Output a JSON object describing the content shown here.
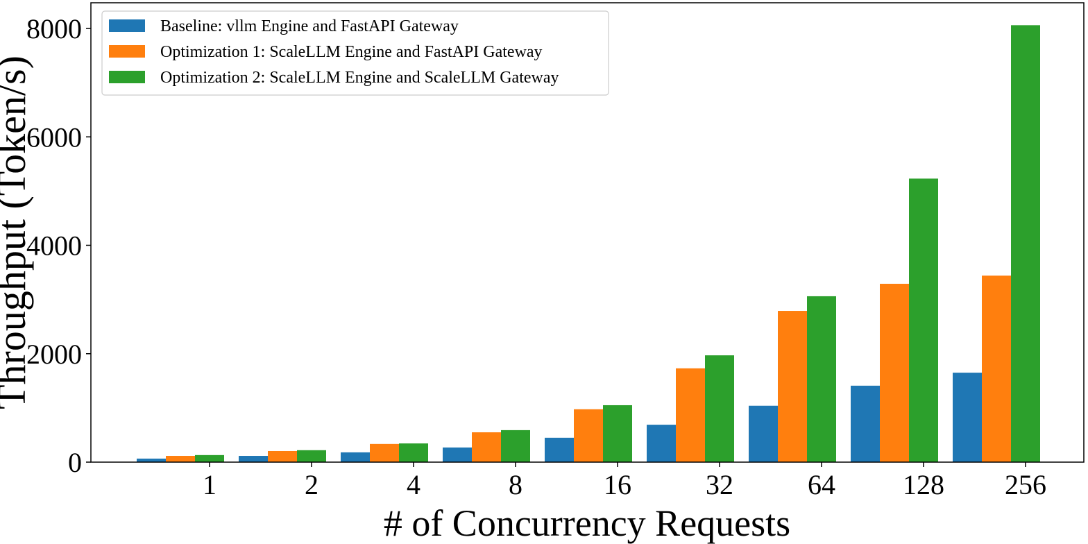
{
  "chart_data": {
    "type": "bar",
    "title": "",
    "xlabel": "# of Concurrency Requests",
    "ylabel": "Throughput (Token/s)",
    "categories": [
      "1",
      "2",
      "4",
      "8",
      "16",
      "32",
      "64",
      "128",
      "256"
    ],
    "ylim": [
      0,
      8500
    ],
    "yticks": [
      "0",
      "2000",
      "4000",
      "6000",
      "8000"
    ],
    "grid": false,
    "legend_position": "top-left",
    "series": [
      {
        "name": "Baseline: vllm Engine and FastAPI Gateway",
        "color": "#1f77b4",
        "values": [
          65,
          115,
          180,
          270,
          450,
          690,
          1040,
          1410,
          1650
        ]
      },
      {
        "name": "Optimization 1: ScaleLLM Engine and FastAPI Gateway",
        "color": "#ff7f0e",
        "values": [
          115,
          205,
          335,
          550,
          975,
          1730,
          2790,
          3290,
          3440
        ]
      },
      {
        "name": "Optimization 2: ScaleLLM Engine and ScaleLLM Gateway",
        "color": "#2ca02c",
        "values": [
          130,
          220,
          345,
          590,
          1050,
          1970,
          3060,
          5230,
          8060
        ]
      }
    ]
  }
}
